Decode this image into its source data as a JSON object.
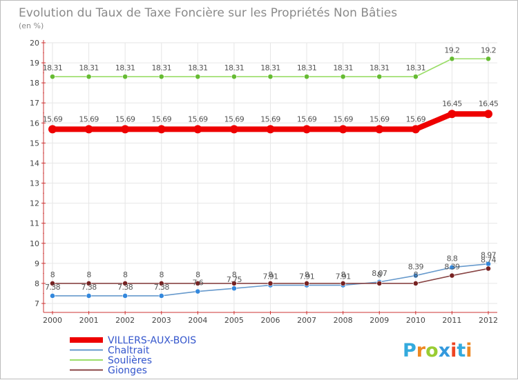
{
  "chart_data": {
    "type": "line",
    "title": "Evolution du Taux de Taxe Foncière sur les Propriétés Non Bâties",
    "subtitle": "(en %)",
    "xlabel": "",
    "ylabel": "",
    "ylim": [
      7,
      20
    ],
    "categories": [
      "2000",
      "2001",
      "2002",
      "2003",
      "2004",
      "2005",
      "2006",
      "2007",
      "2008",
      "2009",
      "2010",
      "2011",
      "2012"
    ],
    "y_ticks": [
      "7",
      "8",
      "9",
      "10",
      "11",
      "12",
      "13",
      "14",
      "15",
      "16",
      "17",
      "18",
      "19",
      "20"
    ],
    "series": [
      {
        "name": "Soulières",
        "color": "#99dd66",
        "marker": "#66bb33",
        "values": [
          18.31,
          18.31,
          18.31,
          18.31,
          18.31,
          18.31,
          18.31,
          18.31,
          18.31,
          18.31,
          18.31,
          19.2,
          19.2
        ],
        "labels": [
          "18.31",
          "18.31",
          "18.31",
          "18.31",
          "18.31",
          "18.31",
          "18.31",
          "18.31",
          "18.31",
          "18.31",
          "18.31",
          "19.2",
          "19.2"
        ]
      },
      {
        "name": "VILLERS-AUX-BOIS",
        "color": "#ee0000",
        "marker": "#ee0000",
        "values": [
          15.69,
          15.69,
          15.69,
          15.69,
          15.69,
          15.69,
          15.69,
          15.69,
          15.69,
          15.69,
          15.69,
          16.45,
          16.45
        ],
        "labels": [
          "15.69",
          "15.69",
          "15.69",
          "15.69",
          "15.69",
          "15.69",
          "15.69",
          "15.69",
          "15.69",
          "15.69",
          "15.69",
          "16.45",
          "16.45"
        ]
      },
      {
        "name": "Chaltrait",
        "color": "#6699cc",
        "marker": "#3388dd",
        "values": [
          7.38,
          7.38,
          7.38,
          7.38,
          7.6,
          7.75,
          7.91,
          7.91,
          7.91,
          8.07,
          8.39,
          8.8,
          8.97
        ],
        "labels": [
          "7.38",
          "7.38",
          "7.38",
          "7.38",
          "7.6",
          "7.75",
          "7.91",
          "7.91",
          "7.91",
          "8.07",
          "8.39",
          "8.8",
          "8.97"
        ]
      },
      {
        "name": "Gionges",
        "color": "#884444",
        "marker": "#772222",
        "values": [
          8,
          8,
          8,
          8,
          8,
          8,
          8,
          8,
          8,
          8,
          8,
          8.39,
          8.74
        ],
        "labels": [
          "8",
          "8",
          "8",
          "8",
          "8",
          "8",
          "8",
          "8",
          "8",
          "8",
          "8",
          "8.39",
          "8.74"
        ]
      }
    ],
    "legend": {
      "placement": "bottom-left",
      "entries": [
        "VILLERS-AUX-BOIS",
        "Chaltrait",
        "Soulières",
        "Gionges"
      ]
    }
  },
  "logo": {
    "letters": [
      "P",
      "r",
      "o",
      "x",
      "i",
      "t",
      "i"
    ],
    "colors": [
      "#33aadd",
      "#ee8822",
      "#99cc33",
      "#3399dd",
      "#ee4422",
      "#33aadd",
      "#ee8822"
    ]
  }
}
